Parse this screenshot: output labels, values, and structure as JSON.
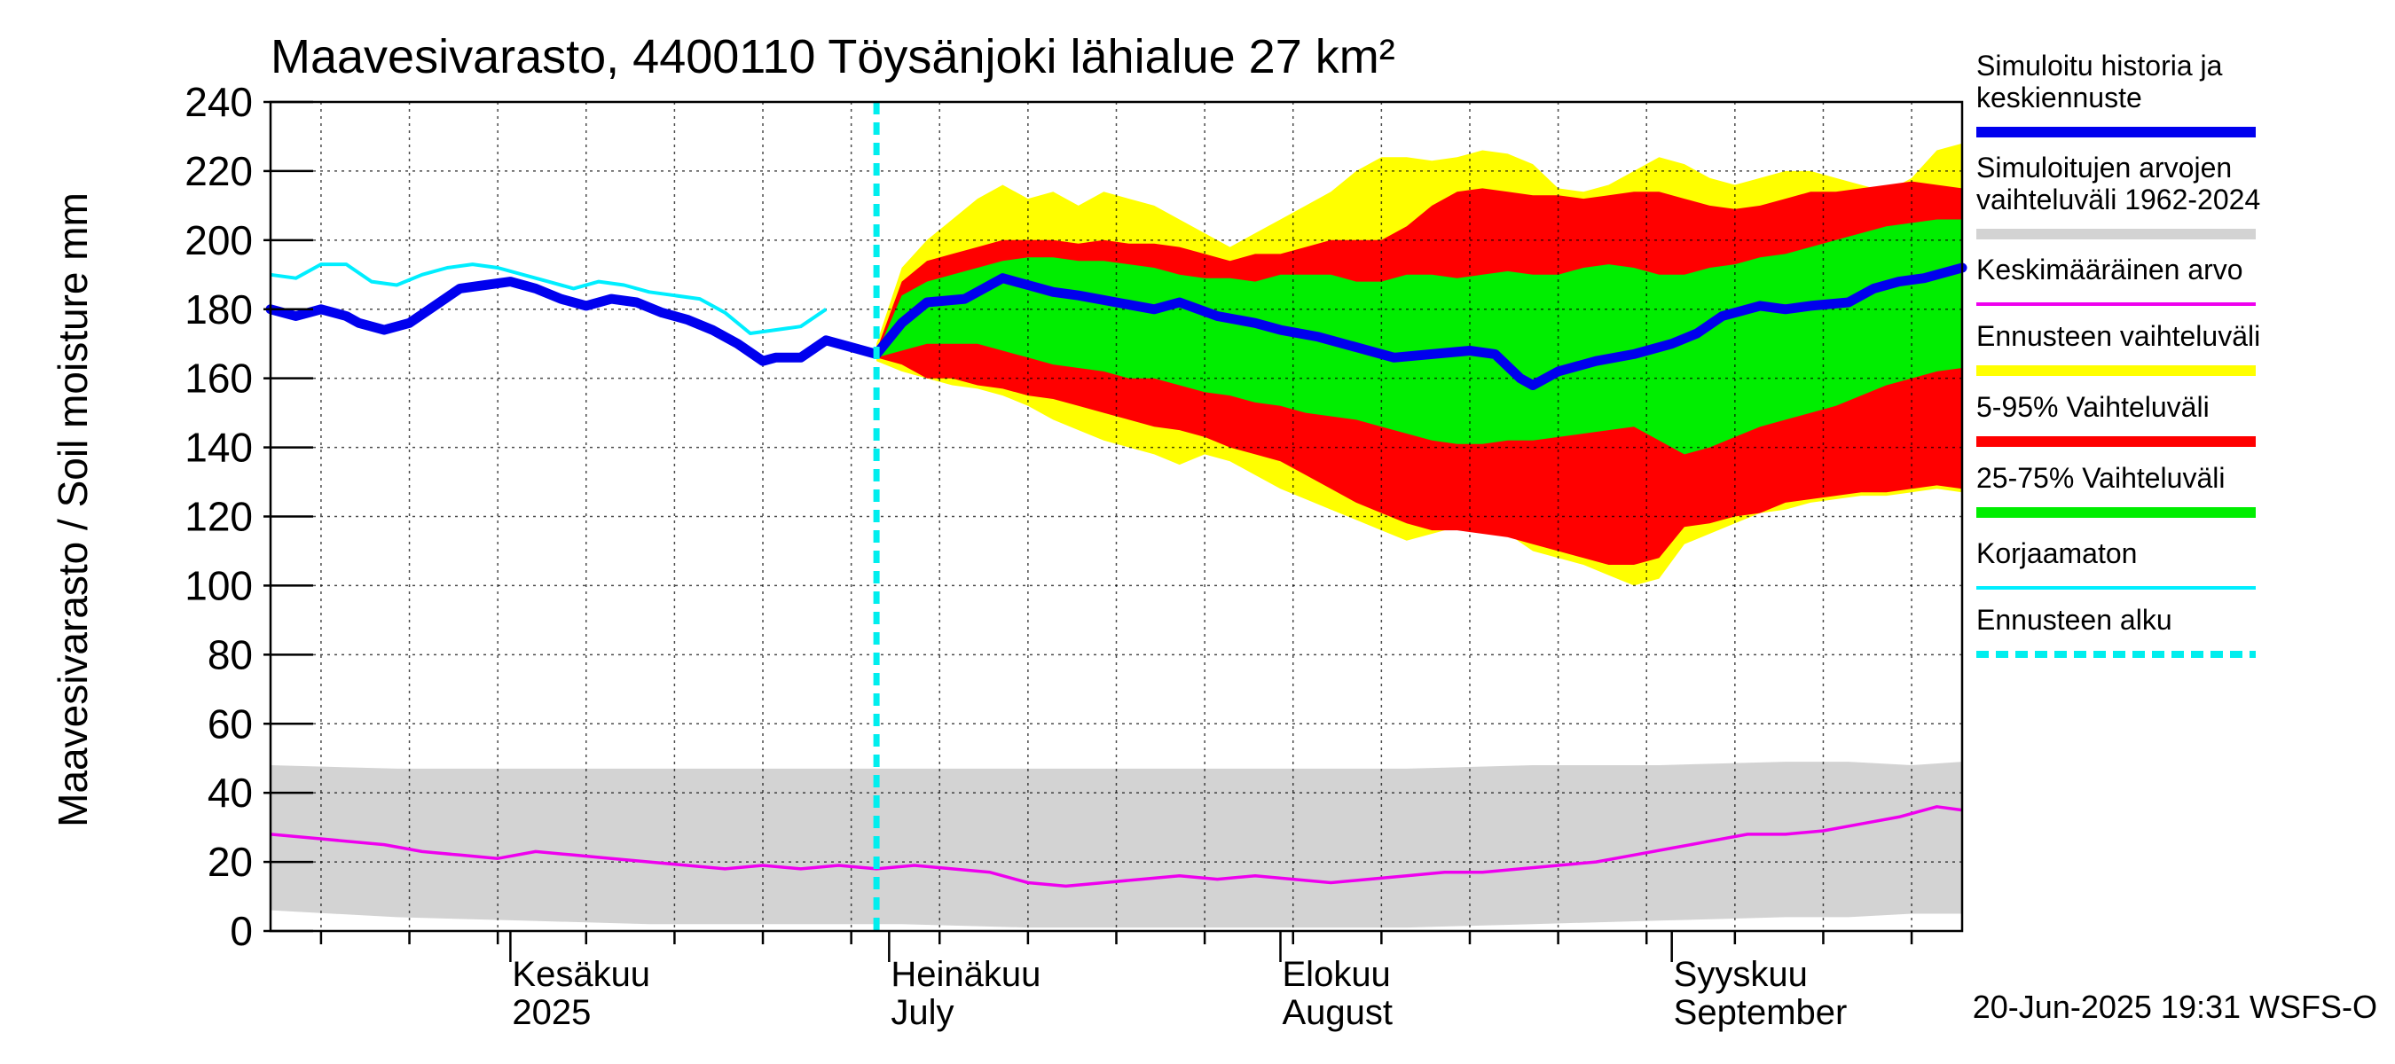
{
  "chart_data": {
    "type": "area",
    "title": "Maavesivarasto, 4400110 Töysänjoki lähialue 27 km²",
    "ylabel": "Maavesivarasto / Soil moisture   mm",
    "ylim": [
      0,
      240
    ],
    "yticks": [
      "0",
      "20",
      "40",
      "60",
      "80",
      "100",
      "120",
      "140",
      "160",
      "180",
      "200",
      "220",
      "240"
    ],
    "x_range_days": [
      0,
      134
    ],
    "forecast_start_day": 48,
    "month_labels": [
      {
        "day": 19,
        "line1": "Kesäkuu",
        "line2": "2025"
      },
      {
        "day": 49,
        "line1": "Heinäkuu",
        "line2": "July"
      },
      {
        "day": 80,
        "line1": "Elokuu",
        "line2": "August"
      },
      {
        "day": 111,
        "line1": "Syyskuu",
        "line2": "September"
      }
    ],
    "colors": {
      "history": "#0000ee",
      "range_hist": "#d3d3d3",
      "mean": "#ee00ee",
      "forecast_range": "#ffff00",
      "p5_95": "#ff0000",
      "p25_75": "#00ee00",
      "uncorrected": "#00eeff",
      "forecast_start": "#00eeee"
    },
    "legend": [
      {
        "label": "Simuloitu historia ja keskiennuste",
        "lines": [
          "Simuloitu historia ja",
          "keskiennuste"
        ],
        "style": "history"
      },
      {
        "label": "Simuloitujen arvojen vaihteluväli 1962-2024",
        "lines": [
          "Simuloitujen arvojen",
          "vaihteluväli 1962-2024"
        ],
        "style": "range_hist"
      },
      {
        "label": "Keskimääräinen arvo",
        "lines": [
          "Keskimääräinen arvo"
        ],
        "style": "mean"
      },
      {
        "label": "Ennusteen vaihteluväli",
        "lines": [
          "Ennusteen vaihteluväli"
        ],
        "style": "forecast_range"
      },
      {
        "label": "5-95% Vaihteluväli",
        "lines": [
          "5-95% Vaihteluväli"
        ],
        "style": "p5_95"
      },
      {
        "label": "25-75% Vaihteluväli",
        "lines": [
          "25-75% Vaihteluväli"
        ],
        "style": "p25_75"
      },
      {
        "label": "Korjaamaton",
        "lines": [
          "Korjaamaton"
        ],
        "style": "uncorrected"
      },
      {
        "label": "Ennusteen alku",
        "lines": [
          "Ennusteen alku"
        ],
        "style": "forecast_start"
      }
    ],
    "series": [
      {
        "name": "Simuloitu historia ja keskiennuste",
        "days": [
          0,
          2,
          4,
          6,
          7,
          9,
          11,
          13,
          15,
          17,
          19,
          21,
          23,
          25,
          27,
          29,
          31,
          33,
          35,
          37,
          39,
          40,
          42,
          44,
          46,
          48,
          50,
          52,
          55,
          58,
          60,
          62,
          64,
          67,
          70,
          72,
          75,
          78,
          80,
          83,
          86,
          89,
          92,
          95,
          97,
          99,
          100,
          102,
          105,
          108,
          111,
          113,
          115,
          118,
          120,
          122,
          125,
          127,
          129,
          131,
          134
        ],
        "values": [
          180,
          178,
          180,
          178,
          176,
          174,
          176,
          181,
          186,
          187,
          188,
          186,
          183,
          181,
          183,
          182,
          179,
          177,
          174,
          170,
          165,
          166,
          166,
          171,
          169,
          167,
          176,
          182,
          183,
          189,
          187,
          185,
          184,
          182,
          180,
          182,
          178,
          176,
          174,
          172,
          169,
          166,
          167,
          168,
          167,
          160,
          158,
          162,
          165,
          167,
          170,
          173,
          178,
          181,
          180,
          181,
          182,
          186,
          188,
          189,
          192
        ]
      },
      {
        "name": "Korjaamaton",
        "days": [
          0,
          2,
          4,
          6,
          8,
          10,
          12,
          14,
          16,
          18,
          20,
          22,
          24,
          26,
          28,
          30,
          32,
          34,
          36,
          38,
          40,
          42,
          44
        ],
        "values": [
          190,
          189,
          193,
          193,
          188,
          187,
          190,
          192,
          193,
          192,
          190,
          188,
          186,
          188,
          187,
          185,
          184,
          183,
          179,
          173,
          174,
          175,
          180
        ]
      },
      {
        "name": "Keskimääräinen arvo",
        "days": [
          0,
          3,
          6,
          9,
          12,
          15,
          18,
          21,
          24,
          27,
          30,
          33,
          36,
          39,
          42,
          45,
          48,
          51,
          54,
          57,
          60,
          63,
          66,
          69,
          72,
          75,
          78,
          81,
          84,
          87,
          90,
          93,
          96,
          99,
          102,
          105,
          108,
          111,
          114,
          117,
          120,
          123,
          126,
          129,
          132,
          134
        ],
        "values": [
          28,
          27,
          26,
          25,
          23,
          22,
          21,
          23,
          22,
          21,
          20,
          19,
          18,
          19,
          18,
          19,
          18,
          19,
          18,
          17,
          14,
          13,
          14,
          15,
          16,
          15,
          16,
          15,
          14,
          15,
          16,
          17,
          17,
          18,
          19,
          20,
          22,
          24,
          26,
          28,
          28,
          29,
          31,
          33,
          36,
          35
        ]
      },
      {
        "name": "Simuloitujen arvojen vaihteluväli 1962-2024",
        "days": [
          0,
          10,
          20,
          30,
          40,
          50,
          60,
          70,
          80,
          90,
          100,
          110,
          120,
          125,
          130,
          134
        ],
        "upper": [
          48,
          47,
          47,
          47,
          47,
          47,
          47,
          47,
          47,
          47,
          48,
          48,
          49,
          49,
          48,
          49
        ],
        "lower": [
          6,
          4,
          3,
          2,
          2,
          2,
          1,
          1,
          1,
          1,
          2,
          3,
          4,
          4,
          5,
          5
        ]
      },
      {
        "name": "Ennusteen vaihteluväli",
        "days": [
          48,
          50,
          52,
          54,
          56,
          58,
          60,
          62,
          64,
          66,
          68,
          70,
          72,
          74,
          76,
          78,
          80,
          82,
          84,
          86,
          88,
          90,
          92,
          94,
          96,
          98,
          100,
          102,
          104,
          106,
          108,
          110,
          112,
          114,
          116,
          118,
          120,
          122,
          124,
          126,
          128,
          130,
          132,
          134
        ],
        "upper": [
          170,
          192,
          200,
          206,
          212,
          216,
          212,
          214,
          210,
          214,
          212,
          210,
          206,
          202,
          198,
          202,
          206,
          210,
          214,
          220,
          224,
          224,
          223,
          224,
          226,
          225,
          222,
          215,
          214,
          216,
          220,
          224,
          222,
          218,
          216,
          218,
          220,
          220,
          218,
          216,
          214,
          218,
          226,
          228
        ],
        "lower": [
          165,
          162,
          160,
          158,
          157,
          155,
          152,
          148,
          145,
          142,
          140,
          138,
          135,
          138,
          136,
          132,
          128,
          125,
          122,
          119,
          116,
          113,
          115,
          117,
          116,
          115,
          110,
          108,
          106,
          103,
          100,
          102,
          112,
          115,
          118,
          121,
          122,
          124,
          125,
          126,
          126,
          127,
          128,
          127
        ]
      },
      {
        "name": "5-95% Vaihteluväli",
        "days": [
          48,
          50,
          52,
          54,
          56,
          58,
          60,
          62,
          64,
          66,
          68,
          70,
          72,
          74,
          76,
          78,
          80,
          82,
          84,
          86,
          88,
          90,
          92,
          94,
          96,
          98,
          100,
          102,
          104,
          106,
          108,
          110,
          112,
          114,
          116,
          118,
          120,
          122,
          124,
          126,
          128,
          130,
          132,
          134
        ],
        "upper": [
          168,
          188,
          194,
          196,
          198,
          200,
          200,
          200,
          199,
          200,
          199,
          199,
          198,
          196,
          194,
          196,
          196,
          198,
          200,
          200,
          200,
          204,
          210,
          214,
          215,
          214,
          213,
          213,
          212,
          213,
          214,
          214,
          212,
          210,
          209,
          210,
          212,
          214,
          214,
          215,
          216,
          217,
          216,
          215
        ],
        "lower": [
          166,
          164,
          160,
          160,
          158,
          157,
          155,
          154,
          152,
          150,
          148,
          146,
          145,
          143,
          140,
          138,
          136,
          132,
          128,
          124,
          121,
          118,
          116,
          116,
          115,
          114,
          112,
          110,
          108,
          106,
          106,
          108,
          117,
          118,
          120,
          121,
          124,
          125,
          126,
          127,
          127,
          128,
          129,
          128
        ]
      },
      {
        "name": "25-75% Vaihteluväli",
        "days": [
          48,
          50,
          52,
          54,
          56,
          58,
          60,
          62,
          64,
          66,
          68,
          70,
          72,
          74,
          76,
          78,
          80,
          82,
          84,
          86,
          88,
          90,
          92,
          94,
          96,
          98,
          100,
          102,
          104,
          106,
          108,
          110,
          112,
          114,
          116,
          118,
          120,
          122,
          124,
          126,
          128,
          130,
          132,
          134
        ],
        "upper": [
          167,
          184,
          188,
          190,
          192,
          194,
          195,
          195,
          194,
          194,
          193,
          192,
          190,
          189,
          189,
          188,
          190,
          190,
          190,
          188,
          188,
          190,
          190,
          189,
          190,
          191,
          190,
          190,
          192,
          193,
          192,
          190,
          190,
          192,
          193,
          195,
          196,
          198,
          200,
          202,
          204,
          205,
          206,
          206
        ]
      },
      {
        "name": "25-75% Vaihteluväli (lower)",
        "days": [
          48,
          50,
          52,
          54,
          56,
          58,
          60,
          62,
          64,
          66,
          68,
          70,
          72,
          74,
          76,
          78,
          80,
          82,
          84,
          86,
          88,
          90,
          92,
          94,
          96,
          98,
          100,
          102,
          104,
          106,
          108,
          110,
          112,
          114,
          116,
          118,
          120,
          122,
          124,
          126,
          128,
          130,
          132,
          134
        ],
        "lower": [
          166,
          168,
          170,
          170,
          170,
          168,
          166,
          164,
          163,
          162,
          160,
          160,
          158,
          156,
          155,
          153,
          152,
          150,
          149,
          148,
          146,
          144,
          142,
          141,
          141,
          142,
          142,
          143,
          144,
          145,
          146,
          142,
          138,
          140,
          143,
          146,
          148,
          150,
          152,
          155,
          158,
          160,
          162,
          163
        ]
      }
    ]
  },
  "footer": {
    "timestamp": "20-Jun-2025 19:31 WSFS-O"
  }
}
